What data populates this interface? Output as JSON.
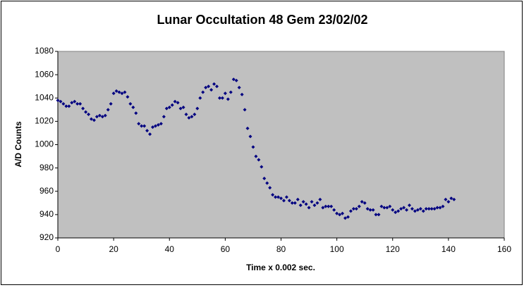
{
  "chart_data": {
    "type": "scatter",
    "title": "Lunar Occultation 48 Gem  23/02/02",
    "x_label": "Time x 0.002 sec.",
    "y_label": "A/D Counts",
    "series": [
      {
        "color": "#000080",
        "x": [
          0,
          1,
          2,
          3,
          4,
          5,
          6,
          7,
          8,
          9,
          10,
          11,
          12,
          13,
          14,
          15,
          16,
          17,
          18,
          19,
          20,
          21,
          22,
          23,
          24,
          25,
          26,
          27,
          28,
          29,
          30,
          31,
          32,
          33,
          34,
          35,
          36,
          37,
          38,
          39,
          40,
          41,
          42,
          43,
          44,
          45,
          46,
          47,
          48,
          49,
          50,
          51,
          52,
          53,
          54,
          55,
          56,
          57,
          58,
          59,
          60,
          61,
          62,
          63,
          64,
          65,
          66,
          67,
          68,
          69,
          70,
          71,
          72,
          73,
          74,
          75,
          76,
          77,
          78,
          79,
          80,
          81,
          82,
          83,
          84,
          85,
          86,
          87,
          88,
          89,
          90,
          91,
          92,
          93,
          94,
          95,
          96,
          97,
          98,
          99,
          100,
          101,
          102,
          103,
          104,
          105,
          106,
          107,
          108,
          109,
          110,
          111,
          112,
          113,
          114,
          115,
          116,
          117,
          118,
          119,
          120,
          121,
          122,
          123,
          124,
          125,
          126,
          127,
          128,
          129,
          130,
          131,
          132,
          133,
          134,
          135,
          136,
          137,
          138,
          139,
          140,
          141,
          142
        ],
        "values": [
          1038,
          1037,
          1035,
          1033,
          1033,
          1036,
          1037,
          1035,
          1035,
          1031,
          1028,
          1026,
          1022,
          1021,
          1024,
          1025,
          1024,
          1025,
          1030,
          1035,
          1044,
          1046,
          1045,
          1044,
          1045,
          1041,
          1035,
          1032,
          1027,
          1018,
          1016,
          1016,
          1012,
          1009,
          1015,
          1016,
          1017,
          1018,
          1024,
          1031,
          1032,
          1034,
          1037,
          1036,
          1031,
          1032,
          1026,
          1023,
          1024,
          1026,
          1031,
          1040,
          1045,
          1049,
          1050,
          1047,
          1052,
          1050,
          1040,
          1040,
          1044,
          1039,
          1045,
          1056,
          1055,
          1049,
          1043,
          1030,
          1014,
          1007,
          998,
          990,
          987,
          981,
          971,
          967,
          963,
          957,
          955,
          955,
          954,
          952,
          955,
          952,
          950,
          950,
          953,
          948,
          951,
          949,
          946,
          951,
          948,
          950,
          953,
          946,
          947,
          947,
          947,
          944,
          941,
          940,
          941,
          937,
          938,
          943,
          945,
          945,
          947,
          951,
          950,
          945,
          944,
          944,
          940,
          940,
          947,
          946,
          946,
          947,
          944,
          942,
          943,
          945,
          946,
          944,
          948,
          945,
          943,
          944,
          945,
          943,
          945,
          945,
          945,
          945,
          946,
          946,
          947,
          953,
          951,
          954,
          953
        ]
      }
    ],
    "xlim": [
      0,
      160
    ],
    "xticks": [
      0,
      20,
      40,
      60,
      80,
      100,
      120,
      140,
      160
    ],
    "ylim": [
      920,
      1080
    ],
    "yticks": [
      920,
      940,
      960,
      980,
      1000,
      1020,
      1040,
      1060,
      1080
    ],
    "grid": false
  }
}
